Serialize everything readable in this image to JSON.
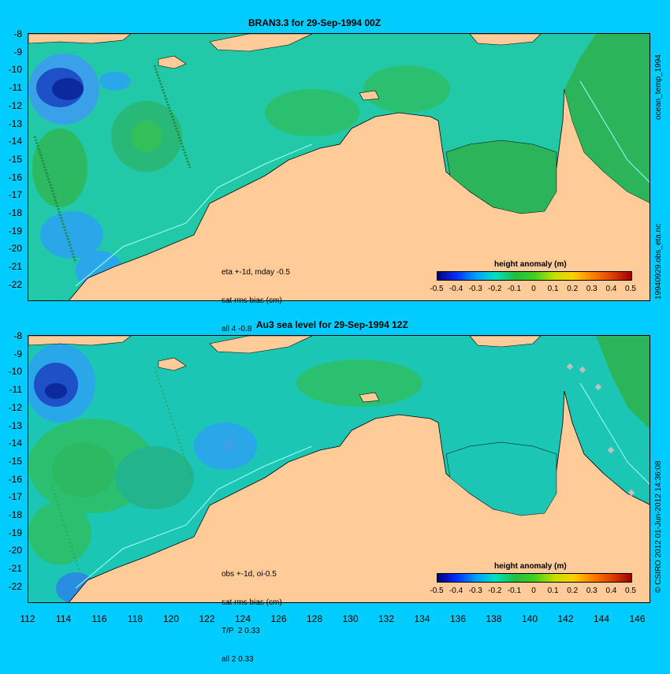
{
  "panels": [
    {
      "title": "BRAN3.3 for 29-Sep-1994 00Z",
      "note_lines": [
        "eta +-1d, mday -0.5",
        "sat rms bias (cm)",
        "all 4 -0.8"
      ],
      "y_ticks": [
        "-8",
        "-9",
        "-10",
        "-11",
        "-12",
        "-13",
        "-14",
        "-15",
        "-16",
        "-17",
        "-18",
        "-19",
        "-20",
        "-21",
        "-22"
      ],
      "colorbar": {
        "title": "height anomaly (m)",
        "ticks": [
          "-0.5",
          "-0.4",
          "-0.3",
          "-0.2",
          "-0.1",
          "0",
          "0.1",
          "0.2",
          "0.3",
          "0.4",
          "0.5"
        ]
      }
    },
    {
      "title": "Au3 sea level  for 29-Sep-1994 12Z",
      "note_lines": [
        "obs +-1d, oi-0.5",
        "sat rms bias (cm)",
        "T/P  2 0.33",
        "all 2 0.33"
      ],
      "y_ticks": [
        "-8",
        "-9",
        "-10",
        "-11",
        "-12",
        "-13",
        "-14",
        "-15",
        "-16",
        "-17",
        "-18",
        "-19",
        "-20",
        "-21",
        "-22"
      ],
      "colorbar": {
        "title": "height anomaly (m)",
        "ticks": [
          "-0.5",
          "-0.4",
          "-0.3",
          "-0.2",
          "-0.1",
          "0",
          "0.1",
          "0.2",
          "0.3",
          "0.4",
          "0.5"
        ]
      }
    }
  ],
  "x_ticks": [
    "112",
    "114",
    "116",
    "118",
    "120",
    "122",
    "124",
    "126",
    "128",
    "130",
    "132",
    "134",
    "136",
    "138",
    "140",
    "142",
    "144",
    "146"
  ],
  "side_labels": {
    "top_a": "ocean_temp_1994",
    "top_b": "19940929.obs_eta.nc",
    "bottom": "© CSIRO 2012  01-Jun-2012 14:36:08"
  },
  "colors": {
    "background": "#00ccff",
    "land": "#ffcc99",
    "ocean_mid": "#1ccfa8",
    "ocean_green": "#2dbf5f",
    "ocean_blue": "#2aa7e8",
    "ocean_dark": "#1030b0"
  }
}
